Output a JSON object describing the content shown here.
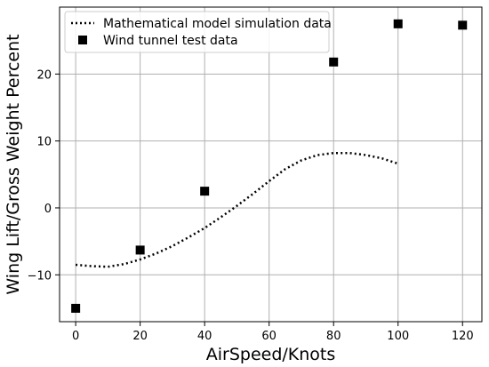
{
  "chart_data": {
    "type": "line",
    "title": "",
    "xlabel": "AirSpeed/Knots",
    "ylabel": "Wing Lift/Gross Weight Percent",
    "xlim": [
      -5,
      126
    ],
    "ylim": [
      -17,
      30
    ],
    "xticks": [
      0,
      20,
      40,
      60,
      80,
      100,
      120
    ],
    "yticks": [
      -10,
      0,
      10,
      20
    ],
    "grid": true,
    "legend_position": "top-left",
    "series": [
      {
        "name": "Mathematical model simulation data",
        "style": "dotted-line",
        "color": "#000000",
        "x": [
          0,
          5,
          10,
          15,
          20,
          25,
          30,
          35,
          40,
          45,
          50,
          55,
          60,
          65,
          70,
          75,
          80,
          85,
          90,
          95,
          100
        ],
        "y": [
          -8.5,
          -8.7,
          -8.8,
          -8.4,
          -7.7,
          -6.8,
          -5.7,
          -4.4,
          -3.0,
          -1.4,
          0.3,
          2.1,
          4.0,
          5.8,
          7.1,
          7.9,
          8.2,
          8.2,
          7.9,
          7.4,
          6.6
        ]
      },
      {
        "name": "Wind tunnel test data",
        "style": "square-markers",
        "color": "#000000",
        "x": [
          0,
          20,
          40,
          80,
          100,
          120
        ],
        "y": [
          -15.0,
          -6.3,
          2.5,
          21.8,
          27.5,
          27.3
        ]
      }
    ]
  }
}
